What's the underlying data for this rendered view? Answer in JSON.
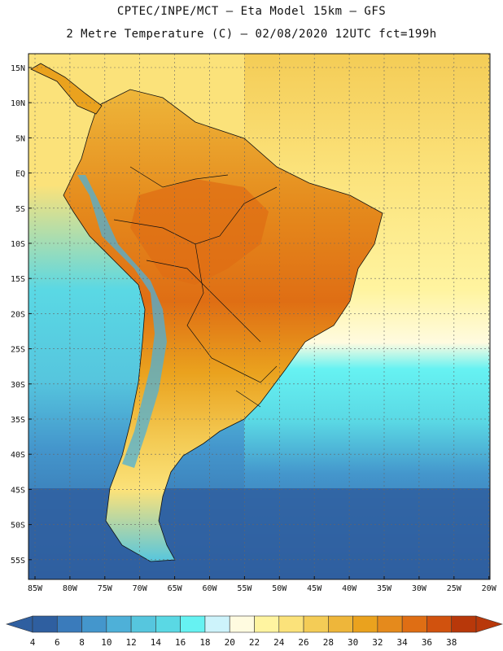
{
  "header": {
    "line1": "CPTEC/INPE/MCT –  Eta Model 15km – GFS",
    "line2": "2 Metre Temperature (C) – 02/08/2020 12UTC fct=199h"
  },
  "map": {
    "lat_labels": [
      "15N",
      "10N",
      "5N",
      "EQ",
      "5S",
      "10S",
      "15S",
      "20S",
      "25S",
      "30S",
      "35S",
      "40S",
      "45S",
      "50S",
      "55S"
    ],
    "lon_labels": [
      "85W",
      "80W",
      "75W",
      "70W",
      "65W",
      "60W",
      "55W",
      "50W",
      "45W",
      "40W",
      "35W",
      "30W",
      "25W",
      "20W"
    ]
  },
  "colorbar": {
    "values": [
      "4",
      "6",
      "8",
      "10",
      "12",
      "14",
      "16",
      "18",
      "20",
      "22",
      "24",
      "26",
      "28",
      "30",
      "32",
      "34",
      "36",
      "38"
    ],
    "colors": [
      "#2f5fa0",
      "#3a7bbb",
      "#4496cc",
      "#4eb0d8",
      "#56c6de",
      "#5ad8e4",
      "#66f2f2",
      "#cdf3fb",
      "#fffbe0",
      "#fff4a0",
      "#fbe27a",
      "#f4cc56",
      "#eeb63a",
      "#eaa21e",
      "#e58a1c",
      "#df6e14",
      "#d1520e",
      "#b8380a"
    ]
  }
}
